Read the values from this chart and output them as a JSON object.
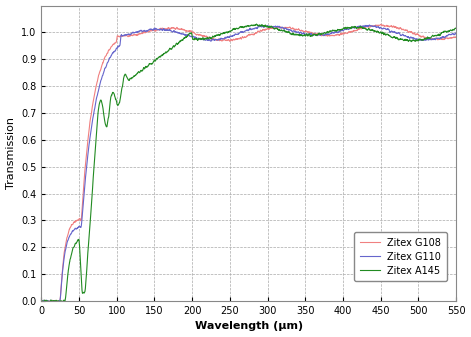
{
  "title": "",
  "xlabel": "Wavelength (μm)",
  "ylabel": "Transmission",
  "xlim": [
    0,
    550
  ],
  "ylim": [
    0.0,
    1.1
  ],
  "xticks": [
    0,
    50,
    100,
    150,
    200,
    250,
    300,
    350,
    400,
    450,
    500,
    550
  ],
  "yticks": [
    0.0,
    0.1,
    0.2,
    0.3,
    0.4,
    0.5,
    0.6,
    0.7,
    0.8,
    0.9,
    1.0
  ],
  "legend": [
    "Zitex G108",
    "Zitex G110",
    "Zitex A145"
  ],
  "colors": {
    "G108": "#f08080",
    "G110": "#6666cc",
    "A145": "#228B22"
  },
  "background_fig": "#ffffff",
  "background_ax": "#ffffff",
  "grid_color": "#aaaaaa",
  "linewidth": 0.8,
  "legend_fontsize": 7,
  "axis_fontsize": 8,
  "tick_fontsize": 7
}
